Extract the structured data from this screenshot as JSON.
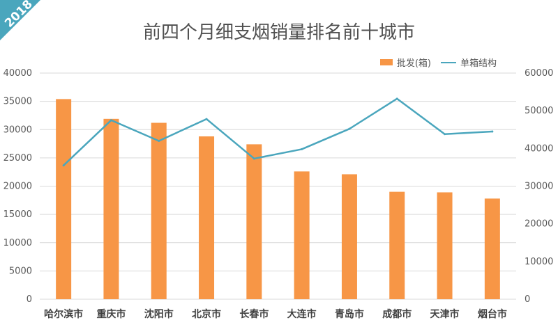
{
  "badge": {
    "year": "2018"
  },
  "colors": {
    "bar": "#f79646",
    "line": "#4aa6bd",
    "grid": "#d9d9d9"
  },
  "chart_data": {
    "type": "bar",
    "title": "前四个月细支烟销量排名前十城市",
    "categories": [
      "哈尔滨市",
      "重庆市",
      "沈阳市",
      "北京市",
      "长春市",
      "大连市",
      "青岛市",
      "成都市",
      "天津市",
      "烟台市"
    ],
    "series": [
      {
        "name": "批发(箱)",
        "type": "bar",
        "axis": "left",
        "values": [
          35400,
          31900,
          31200,
          28800,
          27400,
          22600,
          22100,
          19000,
          18900,
          17800
        ]
      },
      {
        "name": "单箱结构",
        "type": "line",
        "axis": "right",
        "values": [
          35500,
          47500,
          42000,
          47800,
          37300,
          39800,
          45200,
          53200,
          43800,
          44500
        ]
      }
    ],
    "ylim_left": [
      0,
      40000
    ],
    "ylim_right": [
      0,
      60000
    ],
    "yticks_left": [
      "0",
      "5000",
      "10000",
      "15000",
      "20000",
      "25000",
      "30000",
      "35000",
      "40000"
    ],
    "yticks_right": [
      "0",
      "10000",
      "20000",
      "30000",
      "40000",
      "50000",
      "60000"
    ],
    "grid": true,
    "legend_position": "top-right"
  }
}
